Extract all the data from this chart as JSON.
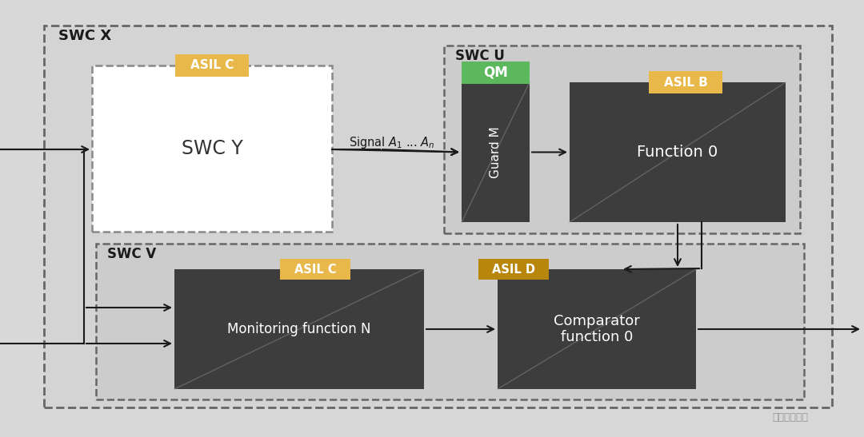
{
  "fig_w": 10.8,
  "fig_h": 5.47,
  "bg_color": "#d8d8d8",
  "inner_bg": "#d0d0d0",
  "dark_box": "#3d3d3d",
  "white_box": "#ffffff",
  "yellow_badge": "#e8b84b",
  "green_badge": "#5cb85c",
  "dark_gold_badge": "#b8860b",
  "arrow_color": "#1a1a1a",
  "dash_color": "#666666",
  "text_dark": "#1a1a1a",
  "title_swcx": "SWC X",
  "title_swcu": "SWC U",
  "title_swcv": "SWC V",
  "lbl_asil_c": "ASIL C",
  "lbl_asil_b": "ASIL B",
  "lbl_asil_d": "ASIL D",
  "lbl_qm": "QM",
  "txt_swcy": "SWC Y",
  "txt_guardm": "Guard M",
  "txt_fn0": "Function 0",
  "txt_mon": "Monitoring function N",
  "txt_comp": "Comparator\nfunction 0",
  "sig_lbl": "Signal $A_1$ ... $A_n$",
  "watermark": "焉知自动驾驶"
}
